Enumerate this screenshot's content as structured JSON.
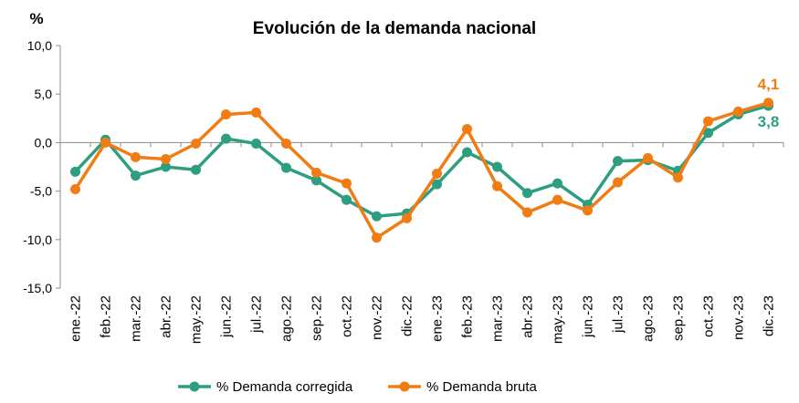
{
  "chart_data": {
    "type": "line",
    "title": "Evolución de la demanda nacional",
    "ylabel": "%",
    "xlabel": "",
    "ylim": [
      -15,
      10
    ],
    "yticks": [
      10,
      5,
      0,
      -5,
      -10,
      -15
    ],
    "ytick_labels": [
      "10,0",
      "5,0",
      "0,0",
      "-5,0",
      "-10,0",
      "-15,0"
    ],
    "categories": [
      "ene.-22",
      "feb.-22",
      "mar.-22",
      "abr.-22",
      "may.-22",
      "jun.-22",
      "jul.-22",
      "ago.-22",
      "sep.-22",
      "oct.-22",
      "nov.-22",
      "dic.-22",
      "ene.-23",
      "feb.-23",
      "mar.-23",
      "abr.-23",
      "may.-23",
      "jun.-23",
      "jul.-23",
      "ago.-23",
      "sep.-23",
      "oct.-23",
      "nov.-23",
      "dic.-23"
    ],
    "series": [
      {
        "name": "% Demanda corregida",
        "color": "#2e9e80",
        "values": [
          -3.0,
          0.3,
          -3.4,
          -2.5,
          -2.8,
          0.4,
          -0.1,
          -2.6,
          -3.9,
          -5.9,
          -7.6,
          -7.3,
          -4.3,
          -1.0,
          -2.5,
          -5.2,
          -4.2,
          -6.4,
          -1.9,
          -1.8,
          -2.9,
          1.0,
          2.9,
          3.8
        ],
        "end_label": "3,8"
      },
      {
        "name": "% Demanda bruta",
        "color": "#f07d14",
        "values": [
          -4.8,
          0.0,
          -1.5,
          -1.7,
          -0.1,
          2.9,
          3.1,
          -0.1,
          -3.1,
          -4.2,
          -9.8,
          -7.8,
          -3.2,
          1.4,
          -4.5,
          -7.2,
          -5.9,
          -7.0,
          -4.1,
          -1.6,
          -3.6,
          2.2,
          3.2,
          4.1
        ],
        "end_label": "4,1"
      }
    ],
    "legend_position": "bottom"
  }
}
